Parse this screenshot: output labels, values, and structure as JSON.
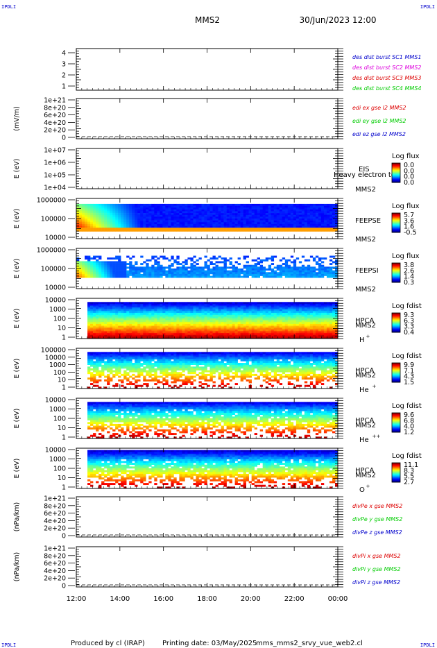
{
  "header": {
    "corner_tl": "IPDLI",
    "corner_tr": "IPDLI",
    "corner_bl": "IPDLI",
    "corner_br": "IPDLI",
    "mission": "MMS2",
    "datetime": "30/Jun/2023 12:00"
  },
  "footer": {
    "produced": "Produced by cl (IRAP)",
    "printing": "Printing date: 03/May/2025",
    "script": "mms_mms2_srvy_vue_web2.cl"
  },
  "chart_data": {
    "type": "heatmap",
    "x_axis": {
      "ticks": [
        "12:00",
        "14:00",
        "16:00",
        "18:00",
        "20:00",
        "22:00",
        "00:00"
      ],
      "range_hours": [
        0,
        12
      ]
    },
    "colors": {
      "red": "#dd0000",
      "green": "#00cc00",
      "blue": "#0000cc",
      "magenta": "#dd00dd"
    },
    "panels": [
      {
        "id": "burst",
        "kind": "lines",
        "yticks": [
          "4",
          "3",
          "2",
          "1"
        ],
        "ylabel": "",
        "legend": [
          {
            "text": "des dist burst SC1 MMS1",
            "color": "#0000cc"
          },
          {
            "text": "des dist burst SC2 MMS2",
            "color": "#dd00dd"
          },
          {
            "text": "des dist burst SC3 MMS3",
            "color": "#dd0000"
          },
          {
            "text": "des dist burst SC4 MMS4",
            "color": "#00cc00"
          }
        ]
      },
      {
        "id": "edi",
        "kind": "lines",
        "yticks": [
          "1e+21",
          "8e+20",
          "6e+20",
          "4e+20",
          "2e+20",
          "0"
        ],
        "ylabel": "(mV/m)",
        "zero_dashed": true,
        "legend": [
          {
            "text": "edi ex gse l2 MMS2",
            "color": "#dd0000"
          },
          {
            "text": "edi ey gse l2 MMS2",
            "color": "#00cc00"
          },
          {
            "text": "edi ez gse l2 MMS2",
            "color": "#0000cc"
          }
        ]
      },
      {
        "id": "eis",
        "kind": "spectrogram",
        "yticks": [
          "1e+07",
          "1e+06",
          "1e+05",
          "1e+04"
        ],
        "ylabel": "E (eV)",
        "instrument": "EIS",
        "spacecraft": "MMS2",
        "overlay": "Heavy electron to",
        "colorbar_title": "Log flux",
        "colorbar_values": [
          "0.0",
          "0.0",
          "0.0",
          "0.0"
        ]
      },
      {
        "id": "feepse",
        "kind": "spectrogram",
        "yticks": [
          "1000000",
          "100000",
          "10000"
        ],
        "ylabel": "E (eV)",
        "instrument": "FEEPSE",
        "spacecraft": "MMS2",
        "colorbar_title": "Log flux",
        "colorbar_values": [
          "5.7",
          "3.6",
          "1.6",
          "-0.5"
        ]
      },
      {
        "id": "feepsi",
        "kind": "spectrogram",
        "yticks": [
          "1000000",
          "100000",
          "10000"
        ],
        "ylabel": "E (eV)",
        "instrument": "FEEPSI",
        "spacecraft": "MMS2",
        "colorbar_title": "Log flux",
        "colorbar_values": [
          "3.8",
          "2.6",
          "1.4",
          "0.3"
        ]
      },
      {
        "id": "hpca_h",
        "kind": "spectrogram",
        "yticks": [
          "10000",
          "1000",
          "100",
          "10",
          "1"
        ],
        "ylabel": "E (eV)",
        "instrument": "HPCA",
        "spacecraft": "MMS2",
        "species": "H",
        "charge": "+",
        "colorbar_title": "Log fdist",
        "colorbar_values": [
          "9.3",
          "6.3",
          "3.3",
          "0.4"
        ]
      },
      {
        "id": "hpca_he",
        "kind": "spectrogram",
        "yticks": [
          "100000",
          "10000",
          "1000",
          "100",
          "10",
          "1"
        ],
        "ylabel": "E (eV)",
        "instrument": "HPCA",
        "spacecraft": "MMS2",
        "species": "He",
        "charge": "+",
        "colorbar_title": "Log fdist",
        "colorbar_values": [
          "9.9",
          "7.1",
          "4.3",
          "1.5"
        ]
      },
      {
        "id": "hpca_he2",
        "kind": "spectrogram",
        "yticks": [
          "10000",
          "1000",
          "100",
          "10",
          "1"
        ],
        "ylabel": "E (eV)",
        "instrument": "HPCA",
        "spacecraft": "MMS2",
        "species": "He",
        "charge": "++",
        "colorbar_title": "Log fdist",
        "colorbar_values": [
          "9.6",
          "6.8",
          "4.0",
          "1.2"
        ]
      },
      {
        "id": "hpca_o",
        "kind": "spectrogram",
        "yticks": [
          "10000",
          "1000",
          "100",
          "10",
          "1"
        ],
        "ylabel": "E (eV)",
        "instrument": "HPCA",
        "spacecraft": "MMS2",
        "species": "O",
        "charge": "+",
        "colorbar_title": "Log fdist",
        "colorbar_values": [
          "11.1",
          "8.3",
          "5.5",
          "2.7"
        ]
      },
      {
        "id": "divpe",
        "kind": "lines",
        "yticks": [
          "1e+21",
          "8e+20",
          "6e+20",
          "4e+20",
          "2e+20",
          "0"
        ],
        "ylabel": "(nPa/km)",
        "zero_dashed": true,
        "legend": [
          {
            "text": "divPe x gse MMS2",
            "color": "#dd0000"
          },
          {
            "text": "divPe y gse MMS2",
            "color": "#00cc00"
          },
          {
            "text": "divPe z gse MMS2",
            "color": "#0000cc"
          }
        ]
      },
      {
        "id": "divpi",
        "kind": "lines",
        "yticks": [
          "1e+21",
          "8e+20",
          "6e+20",
          "4e+20",
          "2e+20",
          "0"
        ],
        "ylabel": "(nPa/km)",
        "zero_dashed": true,
        "legend": [
          {
            "text": "divPi x gse MMS2",
            "color": "#dd0000"
          },
          {
            "text": "divPi y gse MMS2",
            "color": "#00cc00"
          },
          {
            "text": "divPi z gse MMS2",
            "color": "#0000cc"
          }
        ]
      }
    ]
  }
}
